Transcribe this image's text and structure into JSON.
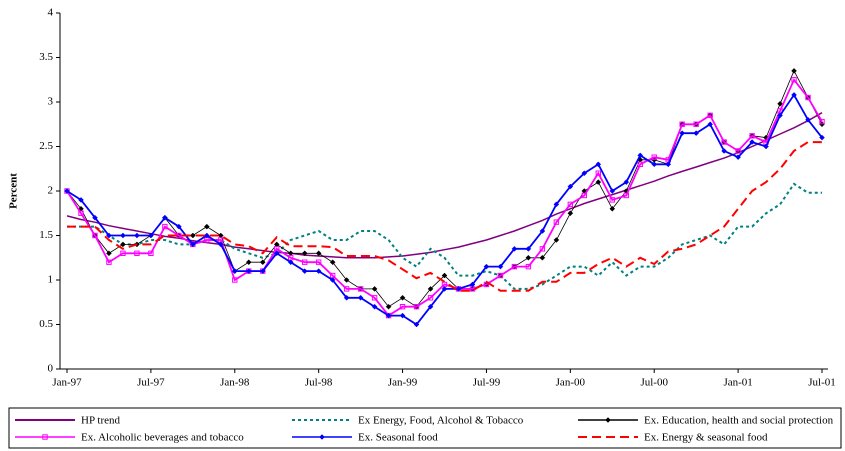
{
  "chart_data": {
    "type": "line",
    "y_label": "Percent",
    "categories": [
      "Jan-97",
      null,
      null,
      null,
      null,
      null,
      "Jul-97",
      null,
      null,
      null,
      null,
      null,
      "Jan-98",
      null,
      null,
      null,
      null,
      null,
      "Jul-98",
      null,
      null,
      null,
      null,
      null,
      "Jan-99",
      null,
      null,
      null,
      null,
      null,
      "Jul-99",
      null,
      null,
      null,
      null,
      null,
      "Jan-00",
      null,
      null,
      null,
      null,
      null,
      "Jul-00",
      null,
      null,
      null,
      null,
      null,
      "Jan-01",
      null,
      null,
      null,
      null,
      null,
      "Jul-01"
    ],
    "ylim": [
      0,
      4
    ],
    "yticks": [
      0,
      0.5,
      1,
      1.5,
      2,
      2.5,
      3,
      3.5,
      4
    ],
    "legend": "bottom",
    "series": [
      {
        "name": "HP trend",
        "color": "#800080",
        "dash": "solid",
        "marker": "none",
        "values": [
          1.72,
          1.68,
          1.65,
          1.61,
          1.58,
          1.55,
          1.52,
          1.49,
          1.47,
          1.44,
          1.42,
          1.4,
          1.37,
          1.35,
          1.33,
          1.31,
          1.3,
          1.28,
          1.27,
          1.26,
          1.25,
          1.25,
          1.25,
          1.26,
          1.27,
          1.29,
          1.31,
          1.34,
          1.37,
          1.41,
          1.45,
          1.5,
          1.55,
          1.61,
          1.67,
          1.74,
          1.8,
          1.86,
          1.91,
          1.96,
          2.01,
          2.06,
          2.11,
          2.17,
          2.22,
          2.27,
          2.32,
          2.37,
          2.43,
          2.5,
          2.57,
          2.64,
          2.71,
          2.79,
          2.88
        ]
      },
      {
        "name": "Ex Energy, Food, Alcohol & Tobacco",
        "color": "#008080",
        "dash": "dotted",
        "marker": "none",
        "values": [
          1.6,
          1.6,
          1.6,
          1.5,
          1.4,
          1.4,
          1.45,
          1.45,
          1.4,
          1.4,
          1.45,
          1.45,
          1.35,
          1.3,
          1.25,
          1.3,
          1.45,
          1.5,
          1.55,
          1.45,
          1.45,
          1.55,
          1.55,
          1.45,
          1.25,
          1.15,
          1.35,
          1.25,
          1.05,
          1.05,
          1.1,
          1.05,
          0.9,
          0.9,
          0.95,
          1.05,
          1.15,
          1.15,
          1.05,
          1.2,
          1.05,
          1.15,
          1.15,
          1.25,
          1.4,
          1.45,
          1.5,
          1.4,
          1.6,
          1.6,
          1.75,
          1.85,
          2.08,
          1.98,
          1.98
        ]
      },
      {
        "name": "Ex. Education, health and social protection",
        "color": "#000000",
        "dash": "solid",
        "marker": "diamond",
        "values": [
          2.0,
          1.8,
          1.5,
          1.3,
          1.4,
          1.4,
          1.5,
          1.7,
          1.5,
          1.5,
          1.6,
          1.5,
          1.1,
          1.2,
          1.2,
          1.4,
          1.3,
          1.3,
          1.3,
          1.2,
          1.0,
          0.9,
          0.9,
          0.7,
          0.8,
          0.7,
          0.9,
          1.05,
          0.9,
          0.9,
          0.95,
          1.05,
          1.15,
          1.25,
          1.25,
          1.45,
          1.75,
          2.0,
          2.1,
          1.8,
          2.0,
          2.35,
          2.35,
          2.3,
          2.75,
          2.75,
          2.85,
          2.55,
          2.45,
          2.62,
          2.6,
          2.98,
          3.35,
          3.05,
          2.75
        ]
      },
      {
        "name": "Ex. Alcoholic beverages and tobacco",
        "color": "#ff00ff",
        "dash": "solid",
        "marker": "square",
        "values": [
          2.0,
          1.75,
          1.5,
          1.2,
          1.3,
          1.3,
          1.3,
          1.6,
          1.5,
          1.4,
          1.45,
          1.45,
          1.0,
          1.1,
          1.1,
          1.35,
          1.25,
          1.2,
          1.2,
          1.05,
          0.9,
          0.9,
          0.8,
          0.6,
          0.7,
          0.7,
          0.8,
          0.95,
          0.9,
          0.9,
          0.95,
          1.05,
          1.15,
          1.15,
          1.35,
          1.65,
          1.85,
          1.95,
          2.2,
          1.9,
          1.95,
          2.3,
          2.38,
          2.35,
          2.75,
          2.75,
          2.85,
          2.55,
          2.45,
          2.62,
          2.55,
          2.9,
          3.25,
          3.05,
          2.78
        ]
      },
      {
        "name": "Ex. Seasonal food",
        "color": "#0000ff",
        "dash": "solid",
        "marker": "diamond",
        "values": [
          2.0,
          1.9,
          1.7,
          1.5,
          1.5,
          1.5,
          1.5,
          1.7,
          1.6,
          1.4,
          1.5,
          1.4,
          1.1,
          1.1,
          1.1,
          1.3,
          1.2,
          1.1,
          1.1,
          1.0,
          0.8,
          0.8,
          0.7,
          0.6,
          0.6,
          0.5,
          0.7,
          0.9,
          0.9,
          0.95,
          1.15,
          1.15,
          1.35,
          1.35,
          1.55,
          1.85,
          2.05,
          2.2,
          2.3,
          2.0,
          2.1,
          2.4,
          2.3,
          2.3,
          2.65,
          2.65,
          2.75,
          2.45,
          2.38,
          2.55,
          2.5,
          2.85,
          3.08,
          2.8,
          2.6
        ]
      },
      {
        "name": "Ex. Energy & seasonal food",
        "color": "#ff0000",
        "dash": "dashed",
        "marker": "none",
        "values": [
          1.6,
          1.6,
          1.6,
          1.45,
          1.35,
          1.4,
          1.4,
          1.5,
          1.5,
          1.5,
          1.5,
          1.5,
          1.4,
          1.38,
          1.3,
          1.48,
          1.38,
          1.38,
          1.38,
          1.37,
          1.27,
          1.27,
          1.27,
          1.22,
          1.12,
          1.02,
          1.08,
          0.98,
          0.88,
          0.88,
          0.98,
          0.88,
          0.88,
          0.88,
          0.98,
          0.98,
          1.08,
          1.08,
          1.18,
          1.25,
          1.15,
          1.25,
          1.18,
          1.32,
          1.35,
          1.4,
          1.5,
          1.6,
          1.8,
          2.0,
          2.1,
          2.25,
          2.45,
          2.55,
          2.55
        ]
      }
    ]
  }
}
